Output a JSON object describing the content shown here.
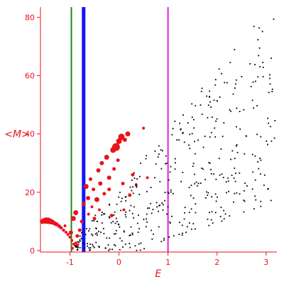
{
  "chart_data": {
    "type": "scatter",
    "xlabel": "E",
    "ylabel": "<M>",
    "xlim": [
      -1.6,
      3.22
    ],
    "ylim": [
      -0.5,
      83.5
    ],
    "x_ticks": [
      -1,
      0,
      1,
      2,
      3
    ],
    "x_tick_labels": [
      "-1",
      "0",
      "1",
      "2",
      "3"
    ],
    "y_ticks": [
      0,
      20,
      40,
      60,
      80
    ],
    "y_tick_labels": [
      "0",
      "20",
      "40",
      "60",
      "80"
    ],
    "grid": false,
    "vertical_lines": [
      {
        "x": -0.97,
        "color": "#1a8a1a",
        "width": 2
      },
      {
        "x": -0.72,
        "color": "#1414ff",
        "width": 5
      },
      {
        "x": 1.0,
        "color": "#e619e6",
        "width": 2
      }
    ],
    "series": [
      {
        "color": "#e8141c",
        "marker": "circle",
        "points": [
          [
            -1.56,
            10.0,
            3.5
          ],
          [
            -1.52,
            10.2,
            4.0
          ],
          [
            -1.48,
            10.3,
            4.5
          ],
          [
            -1.44,
            10.2,
            4.5
          ],
          [
            -1.4,
            10.0,
            4.0
          ],
          [
            -1.36,
            9.8,
            3.5
          ],
          [
            -1.31,
            9.3,
            3.0
          ],
          [
            -1.27,
            9.0,
            2.8
          ],
          [
            -1.22,
            8.4,
            2.5
          ],
          [
            -1.18,
            7.8,
            2.3
          ],
          [
            -1.13,
            7.0,
            2.2
          ],
          [
            -1.08,
            6.3,
            2.0
          ],
          [
            -1.04,
            5.5,
            2.0
          ],
          [
            -1.0,
            4.6,
            2.0
          ],
          [
            -0.96,
            3.5,
            2.0
          ],
          [
            -0.92,
            2.2,
            2.0
          ],
          [
            -0.88,
            1.5,
            2.0
          ],
          [
            -0.84,
            2.0,
            2.0
          ],
          [
            -0.98,
            6.2,
            3.0
          ],
          [
            -0.93,
            11.0,
            3.5
          ],
          [
            -0.88,
            13.0,
            3.5
          ],
          [
            -0.85,
            5.0,
            2.5
          ],
          [
            -0.8,
            7.0,
            2.5
          ],
          [
            -0.76,
            10.0,
            2.5
          ],
          [
            -0.72,
            16.0,
            3.0
          ],
          [
            -0.67,
            22.0,
            3.5
          ],
          [
            -0.63,
            18.0,
            3.0
          ],
          [
            -0.58,
            24.5,
            2.5
          ],
          [
            -0.55,
            15.0,
            2.0
          ],
          [
            -0.5,
            11.0,
            2.5
          ],
          [
            -0.45,
            17.5,
            3.5
          ],
          [
            -0.42,
            27.5,
            3.0
          ],
          [
            -0.38,
            23.0,
            3.0
          ],
          [
            -0.35,
            30.0,
            3.0
          ],
          [
            -0.3,
            19.5,
            2.5
          ],
          [
            -0.25,
            32.0,
            3.5
          ],
          [
            -0.2,
            25.0,
            3.0
          ],
          [
            -0.15,
            12.0,
            2.5
          ],
          [
            -0.12,
            34.5,
            4.0
          ],
          [
            -0.1,
            28.0,
            2.5
          ],
          [
            -0.06,
            35.5,
            5.5
          ],
          [
            0.0,
            37.5,
            4.0
          ],
          [
            0.05,
            39.0,
            4.5
          ],
          [
            0.08,
            23.0,
            2.5
          ],
          [
            0.12,
            38.0,
            3.0
          ],
          [
            0.18,
            40.0,
            3.5
          ],
          [
            0.22,
            19.0,
            2.5
          ],
          [
            0.28,
            26.0,
            2.5
          ],
          [
            0.35,
            22.5,
            2.0
          ],
          [
            0.5,
            42.0,
            2.0
          ],
          [
            0.58,
            25.0,
            2.0
          ],
          [
            -0.88,
            2.6,
            2.0
          ],
          [
            -0.95,
            0.8,
            2.0
          ],
          [
            -1.1,
            8.5,
            2.0
          ],
          [
            -0.62,
            12.5,
            2.0
          ],
          [
            -0.4,
            14.0,
            2.0
          ],
          [
            -0.02,
            31.0,
            2.5
          ],
          [
            0.1,
            14.0,
            2.0
          ],
          [
            -0.2,
            21.0,
            2.5
          ],
          [
            -0.52,
            21.0,
            2.5
          ]
        ]
      },
      {
        "color": "#000000",
        "marker": "dot",
        "points": []
      }
    ]
  }
}
